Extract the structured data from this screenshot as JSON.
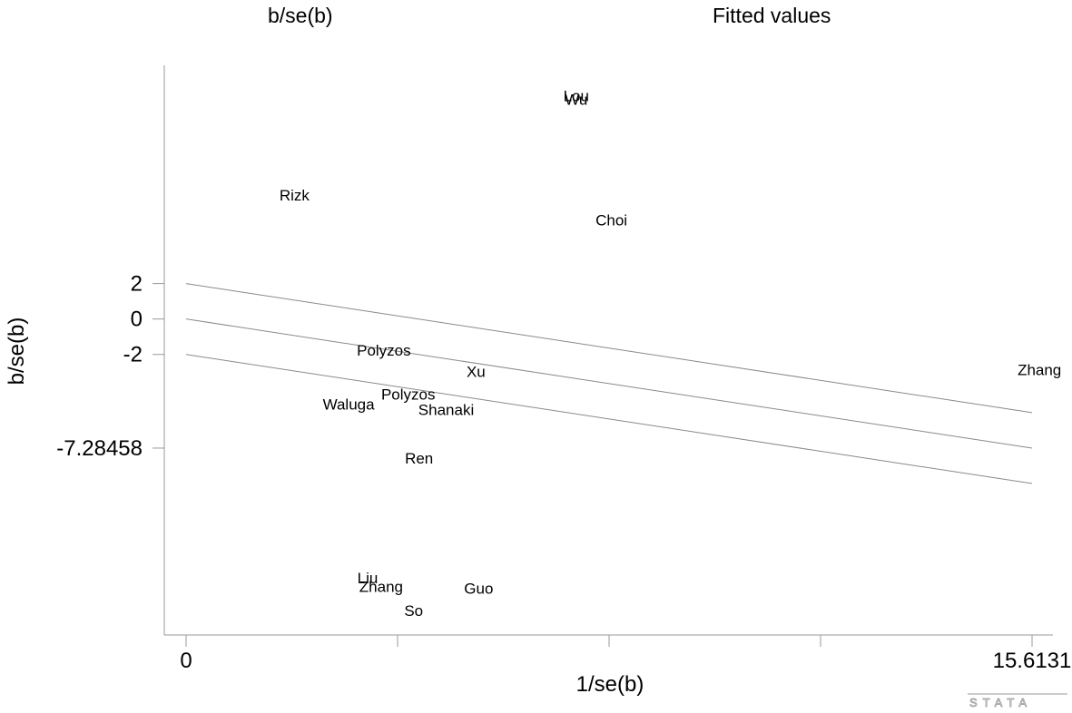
{
  "legend": {
    "series1_label": "b/se(b)",
    "series2_label": "Fitted values"
  },
  "watermark": "STATA",
  "chart_data": {
    "type": "scatter",
    "xlabel": "1/se(b)",
    "ylabel": "b/se(b)",
    "xlim": [
      0,
      15.6131
    ],
    "ylim": [
      -16.4,
      13.5
    ],
    "x_ticks": [
      0,
      15.6131
    ],
    "x_tick_labels": [
      "0",
      "15.6131"
    ],
    "y_ticks": [
      2,
      0,
      -2,
      -7.28458
    ],
    "y_tick_labels": [
      "2",
      "0",
      "-2",
      "-7.28458"
    ],
    "grid": false,
    "points": [
      {
        "label": "Lou",
        "x": 7.2,
        "y": 12.6
      },
      {
        "label": "Wu",
        "x": 7.2,
        "y": 12.4
      },
      {
        "label": "Rizk",
        "x": 2.0,
        "y": 7.0
      },
      {
        "label": "Choi",
        "x": 7.85,
        "y": 5.6
      },
      {
        "label": "Polyzos",
        "x": 3.65,
        "y": -1.75
      },
      {
        "label": "Xu",
        "x": 5.35,
        "y": -2.95
      },
      {
        "label": "Polyzos",
        "x": 4.1,
        "y": -4.25
      },
      {
        "label": "Waluga",
        "x": 3.0,
        "y": -4.8
      },
      {
        "label": "Shanaki",
        "x": 4.8,
        "y": -5.1
      },
      {
        "label": "Ren",
        "x": 4.3,
        "y": -7.85
      },
      {
        "label": "Liu",
        "x": 3.35,
        "y": -14.6
      },
      {
        "label": "Zhang",
        "x": 3.6,
        "y": -15.1
      },
      {
        "label": "Guo",
        "x": 5.4,
        "y": -15.2
      },
      {
        "label": "So",
        "x": 4.2,
        "y": -16.45
      },
      {
        "label": "Zhang",
        "x": 15.75,
        "y": -2.85
      }
    ],
    "lines": [
      {
        "x": [
          0,
          15.6131
        ],
        "y": [
          2,
          -5.28458
        ]
      },
      {
        "x": [
          0,
          15.6131
        ],
        "y": [
          0,
          -7.28458
        ]
      },
      {
        "x": [
          0,
          15.6131
        ],
        "y": [
          -2,
          -9.28458
        ]
      }
    ]
  }
}
